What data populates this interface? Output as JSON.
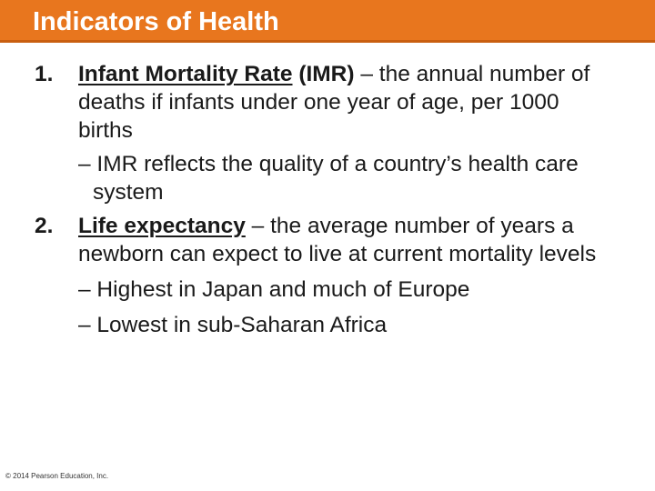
{
  "slide": {
    "title": "Indicators of Health",
    "items": [
      {
        "number": "1.",
        "term": "Infant Mortality Rate",
        "abbr": "(IMR)",
        "definition": "– the annual number of deaths if infants under one year of age, per 1000 births",
        "bullets": [
          "– IMR reflects the quality of a country’s health care system"
        ]
      },
      {
        "number": "2.",
        "term": "Life expectancy",
        "definition": "– the average number of years a newborn can expect to live at current mortality levels",
        "bullets": [
          "– Highest in Japan and much of Europe",
          "– Lowest in sub-Saharan Africa"
        ]
      }
    ],
    "copyright": "© 2014 Pearson Education, Inc."
  },
  "colors": {
    "title_bar": "#e8761e",
    "title_text": "#ffffff",
    "body_text": "#1a1a1a"
  }
}
